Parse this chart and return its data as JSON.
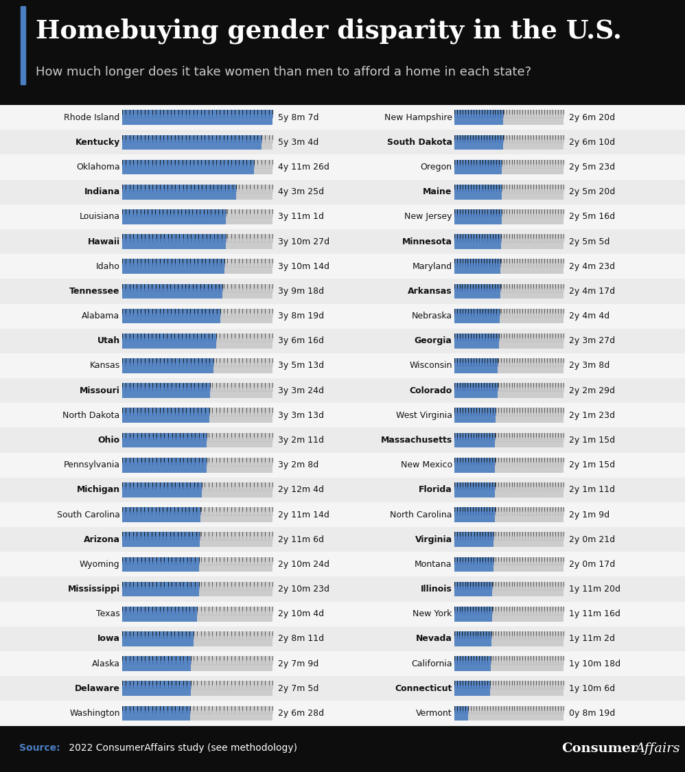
{
  "title": "Homebuying gender disparity in the U.S.",
  "subtitle": "How much longer does it take women than men to afford a home in each state?",
  "bg_color": "#0d0d0d",
  "content_bg": "#ffffff",
  "accent_color": "#4a7fc1",
  "title_color": "#ffffff",
  "subtitle_color": "#dddddd",
  "source_label": "Source:",
  "source_rest": " 2022 ConsumerAffairs study (see methodology)",
  "source_color_label": "#4a7fc1",
  "source_color_text": "#ffffff",
  "left_states": [
    {
      "state": "Rhode Island",
      "label": "5y 8m 7d",
      "months": 68.23
    },
    {
      "state": "Kentucky",
      "label": "5y 3m 4d",
      "months": 63.13
    },
    {
      "state": "Oklahoma",
      "label": "4y 11m 26d",
      "months": 59.87
    },
    {
      "state": "Indiana",
      "label": "4y 3m 25d",
      "months": 51.83
    },
    {
      "state": "Louisiana",
      "label": "3y 11m 1d",
      "months": 47.03
    },
    {
      "state": "Hawaii",
      "label": "3y 10m 27d",
      "months": 46.9
    },
    {
      "state": "Idaho",
      "label": "3y 10m 14d",
      "months": 46.47
    },
    {
      "state": "Tennessee",
      "label": "3y 9m 18d",
      "months": 45.6
    },
    {
      "state": "Alabama",
      "label": "3y 8m 19d",
      "months": 44.63
    },
    {
      "state": "Utah",
      "label": "3y 6m 16d",
      "months": 42.53
    },
    {
      "state": "Kansas",
      "label": "3y 5m 13d",
      "months": 41.43
    },
    {
      "state": "Missouri",
      "label": "3y 3m 24d",
      "months": 39.8
    },
    {
      "state": "North Dakota",
      "label": "3y 3m 13d",
      "months": 39.43
    },
    {
      "state": "Ohio",
      "label": "3y 2m 11d",
      "months": 38.37
    },
    {
      "state": "Pennsylvania",
      "label": "3y 2m 8d",
      "months": 38.27
    },
    {
      "state": "Michigan",
      "label": "2y 12m 4d",
      "months": 36.13
    },
    {
      "state": "South Carolina",
      "label": "2y 11m 14d",
      "months": 35.47
    },
    {
      "state": "Arizona",
      "label": "2y 11m 6d",
      "months": 35.2
    },
    {
      "state": "Wyoming",
      "label": "2y 10m 24d",
      "months": 34.8
    },
    {
      "state": "Mississippi",
      "label": "2y 10m 23d",
      "months": 34.77
    },
    {
      "state": "Texas",
      "label": "2y 10m 4d",
      "months": 34.13
    },
    {
      "state": "Iowa",
      "label": "2y 8m 11d",
      "months": 32.37
    },
    {
      "state": "Alaska",
      "label": "2y 7m 9d",
      "months": 31.3
    },
    {
      "state": "Delaware",
      "label": "2y 7m 5d",
      "months": 31.17
    },
    {
      "state": "Washington",
      "label": "2y 6m 28d",
      "months": 30.93
    }
  ],
  "right_states": [
    {
      "state": "New Hampshire",
      "label": "2y 6m 20d",
      "months": 30.67
    },
    {
      "state": "South Dakota",
      "label": "2y 6m 10d",
      "months": 30.33
    },
    {
      "state": "Oregon",
      "label": "2y 5m 23d",
      "months": 29.77
    },
    {
      "state": "Maine",
      "label": "2y 5m 20d",
      "months": 29.67
    },
    {
      "state": "New Jersey",
      "label": "2y 5m 16d",
      "months": 29.53
    },
    {
      "state": "Minnesota",
      "label": "2y 5m 5d",
      "months": 29.17
    },
    {
      "state": "Maryland",
      "label": "2y 4m 23d",
      "months": 28.77
    },
    {
      "state": "Arkansas",
      "label": "2y 4m 17d",
      "months": 28.57
    },
    {
      "state": "Nebraska",
      "label": "2y 4m 4d",
      "months": 28.13
    },
    {
      "state": "Georgia",
      "label": "2y 3m 27d",
      "months": 27.9
    },
    {
      "state": "Wisconsin",
      "label": "2y 3m 8d",
      "months": 27.27
    },
    {
      "state": "Colorado",
      "label": "2y 2m 29d",
      "months": 26.97
    },
    {
      "state": "West Virginia",
      "label": "2y 1m 23d",
      "months": 25.77
    },
    {
      "state": "Massachusetts",
      "label": "2y 1m 15d",
      "months": 25.5
    },
    {
      "state": "New Mexico",
      "label": "2y 1m 15d",
      "months": 25.5
    },
    {
      "state": "Florida",
      "label": "2y 1m 11d",
      "months": 25.37
    },
    {
      "state": "North Carolina",
      "label": "2y 1m 9d",
      "months": 25.3
    },
    {
      "state": "Virginia",
      "label": "2y 0m 21d",
      "months": 24.7
    },
    {
      "state": "Montana",
      "label": "2y 0m 17d",
      "months": 24.57
    },
    {
      "state": "Illinois",
      "label": "1y 11m 20d",
      "months": 23.67
    },
    {
      "state": "New York",
      "label": "1y 11m 16d",
      "months": 23.53
    },
    {
      "state": "Nevada",
      "label": "1y 11m 2d",
      "months": 23.07
    },
    {
      "state": "California",
      "label": "1y 10m 18d",
      "months": 22.6
    },
    {
      "state": "Connecticut",
      "label": "1y 10m 6d",
      "months": 22.2
    },
    {
      "state": "Vermont",
      "label": "0y 8m 19d",
      "months": 8.63
    }
  ],
  "max_months": 68.23
}
